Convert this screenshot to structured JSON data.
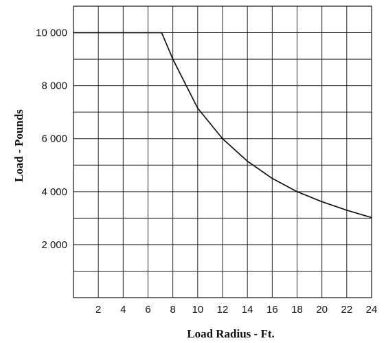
{
  "chart_data": {
    "type": "line",
    "title": "",
    "xlabel": "Load Radius - Ft.",
    "ylabel": "Load - Pounds",
    "xlim": [
      0,
      24
    ],
    "ylim": [
      0,
      11000
    ],
    "grid": true,
    "x_grid_step": 2,
    "y_grid_step": 1000,
    "x_ticks": [
      2,
      4,
      6,
      8,
      10,
      12,
      14,
      16,
      18,
      20,
      22,
      24
    ],
    "x_tick_labels": [
      "2",
      "4",
      "6",
      "8",
      "10",
      "12",
      "14",
      "16",
      "18",
      "20",
      "22",
      "24"
    ],
    "y_ticks": [
      2000,
      4000,
      6000,
      8000,
      10000
    ],
    "y_tick_labels": [
      "2 000",
      "4 000",
      "6 000",
      "8 000",
      "10 000"
    ],
    "series": [
      {
        "x": [
          0,
          7.1,
          8,
          10,
          12,
          14,
          16,
          18,
          20,
          22,
          24
        ],
        "y": [
          10000,
          10000,
          9000,
          7150,
          6000,
          5150,
          4500,
          4000,
          3620,
          3300,
          3020
        ]
      }
    ]
  },
  "colors": {
    "line": "#111111",
    "grid": "#222222",
    "text": "#111111"
  }
}
